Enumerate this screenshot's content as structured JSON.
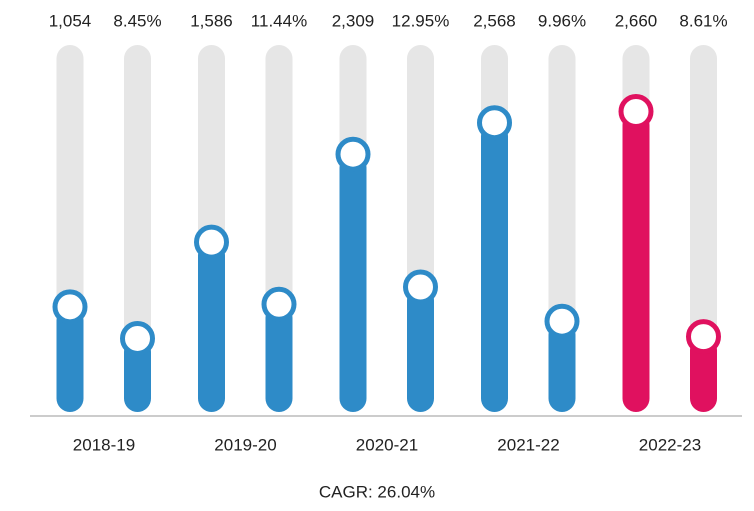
{
  "chart_data": {
    "type": "bar",
    "categories": [
      "2018-19",
      "2019-20",
      "2020-21",
      "2021-22",
      "2022-23"
    ],
    "series": [
      {
        "values": [
          1054,
          1586,
          2309,
          2568,
          2660
        ],
        "value_labels": [
          "1,054",
          "1,586",
          "2,309",
          "2,568",
          "2,660"
        ],
        "colors": [
          "#2e8bc8",
          "#2e8bc8",
          "#2e8bc8",
          "#2e8bc8",
          "#e0115f"
        ]
      },
      {
        "values": [
          8.45,
          11.44,
          12.95,
          9.96,
          8.61
        ],
        "value_labels": [
          "8.45%",
          "11.44%",
          "12.95%",
          "9.96%",
          "8.61%"
        ],
        "colors": [
          "#2e8bc8",
          "#2e8bc8",
          "#2e8bc8",
          "#2e8bc8",
          "#e0115f"
        ],
        "axis": "y2"
      }
    ],
    "ylim": [
      0,
      3100
    ],
    "y2lim": [
      0,
      33
    ],
    "track_color": "#e6e6e6",
    "annotation": "CAGR: 26.04%"
  }
}
